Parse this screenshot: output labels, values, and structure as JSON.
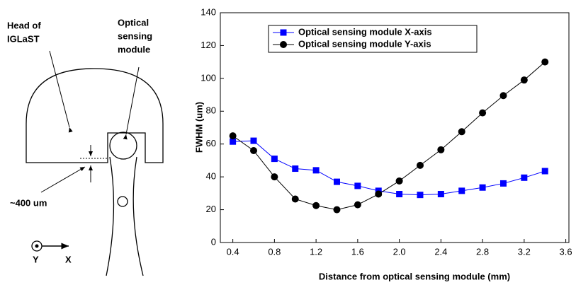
{
  "chart_data": {
    "type": "line",
    "x_label": "Distance from optical sensing module (mm)",
    "y_label": "FWHM (um)",
    "x": [
      0.4,
      0.6,
      0.8,
      1.0,
      1.2,
      1.4,
      1.6,
      1.8,
      2.0,
      2.2,
      2.4,
      2.6,
      2.8,
      3.0,
      3.2,
      3.4
    ],
    "series": [
      {
        "name": "Optical sensing module X-axis",
        "color": "#0000ff",
        "marker": "square",
        "values": [
          61.5,
          62,
          51,
          45,
          44,
          37,
          34.5,
          31.5,
          29.5,
          29,
          29.5,
          31.5,
          33.5,
          36,
          39.5,
          43.5
        ]
      },
      {
        "name": "Optical sensing module Y-axis",
        "color": "#000000",
        "marker": "circle",
        "values": [
          65,
          56,
          40,
          26.5,
          22.5,
          20,
          23,
          29.5,
          37.5,
          47,
          56.5,
          67.5,
          79,
          89.5,
          99,
          110
        ]
      }
    ],
    "xlim": [
      0.28,
      3.63
    ],
    "xticks": [
      0.4,
      0.8,
      1.2,
      1.6,
      {
        "value": 2,
        "label": "2.0"
      },
      2.4,
      2.8,
      3.2,
      3.6
    ],
    "ylim": [
      0,
      140
    ],
    "yticks": [
      0,
      20,
      40,
      60,
      80,
      100,
      120,
      140
    ],
    "legend": "upper left"
  },
  "diagram": {
    "head_label": [
      "Head of",
      "IGLaST"
    ],
    "module_label": [
      "Optical",
      "sensing",
      "module"
    ],
    "gap_label": "~400 um",
    "axis_y": "Y",
    "axis_x": "X"
  }
}
